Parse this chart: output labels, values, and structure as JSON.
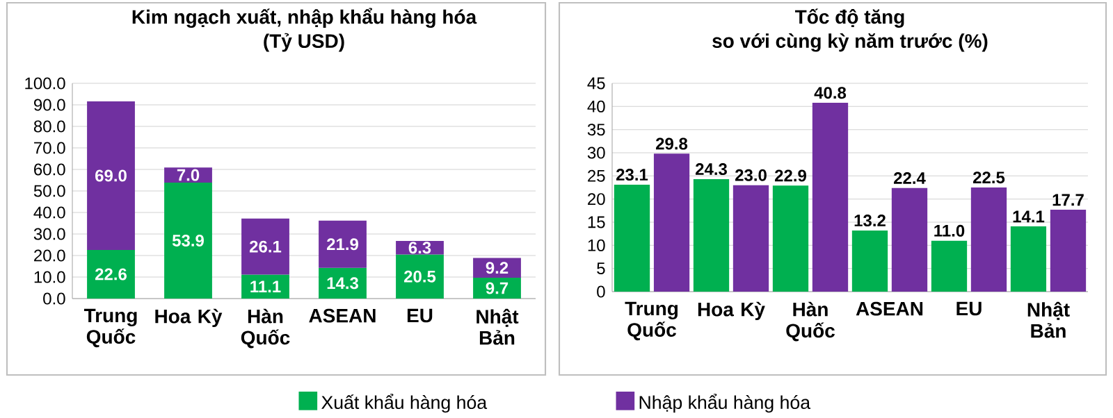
{
  "chart_data": [
    {
      "type": "bar",
      "title": "Kim ngạch xuất, nhập khẩu hàng hóa",
      "subtitle": "(Tỷ USD)",
      "stacked": true,
      "categories": [
        "Trung Quốc",
        "Hoa Kỳ",
        "Hàn Quốc",
        "ASEAN",
        "EU",
        "Nhật Bản"
      ],
      "series": [
        {
          "name": "Xuất khẩu hàng hóa",
          "color": "#00b050",
          "values": [
            22.6,
            53.9,
            11.1,
            14.3,
            20.5,
            9.7
          ],
          "value_labels": [
            "22.6",
            "53.9",
            "11.1",
            "14.3",
            "20.5",
            "9.7"
          ]
        },
        {
          "name": "Nhập khẩu hàng hóa",
          "color": "#7030a0",
          "values": [
            69.0,
            7.0,
            26.1,
            21.9,
            6.3,
            9.2
          ],
          "value_labels": [
            "69.0",
            "7.0",
            "26.1",
            "21.9",
            "6.3",
            "9.2"
          ]
        }
      ],
      "ylim": [
        0,
        100
      ],
      "yticks": [
        {
          "value": 0,
          "label": "0.0"
        },
        {
          "value": 10,
          "label": "10.0"
        },
        {
          "value": 20,
          "label": "20.0"
        },
        {
          "value": 30,
          "label": "30.0"
        },
        {
          "value": 40,
          "label": "40.0"
        },
        {
          "value": 50,
          "label": "50.0"
        },
        {
          "value": 60,
          "label": "60.0"
        },
        {
          "value": 70,
          "label": "70.0"
        },
        {
          "value": 80,
          "label": "80.0"
        },
        {
          "value": 90,
          "label": "90.0"
        },
        {
          "value": 100,
          "label": "100.0"
        }
      ],
      "grid": "y",
      "legend": "bottom"
    },
    {
      "type": "bar",
      "title": "Tốc độ tăng",
      "subtitle": "so với cùng kỳ năm trước (%)",
      "categories": [
        "Trung Quốc",
        "Hoa Kỳ",
        "Hàn Quốc",
        "ASEAN",
        "EU",
        "Nhật Bản"
      ],
      "series": [
        {
          "color": "#00b050",
          "values": [
            23.1,
            24.3,
            22.9,
            13.2,
            11.0,
            14.1
          ],
          "value_labels": [
            "23.1",
            "24.3",
            "22.9",
            "13.2",
            "11.0",
            "14.1"
          ]
        },
        {
          "color": "#7030a0",
          "values": [
            29.8,
            23.0,
            40.8,
            22.4,
            22.5,
            17.7
          ],
          "value_labels": [
            "29.8",
            "23.0",
            "40.8",
            "22.4",
            "22.5",
            "17.7"
          ]
        }
      ],
      "ylim": [
        0,
        45
      ],
      "yticks": [
        0,
        5,
        10,
        15,
        20,
        25,
        30,
        35,
        40,
        45
      ],
      "grid": "y"
    }
  ]
}
